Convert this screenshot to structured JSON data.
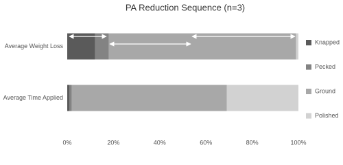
{
  "chart_data": {
    "type": "stacked-barh",
    "title": "PA Reduction Sequence (n=3)",
    "categories": [
      "Average Weight Loss",
      "Average Time Applied"
    ],
    "series": [
      {
        "name": "Knapped",
        "color": "#5a5a5a",
        "values": [
          12,
          1
        ]
      },
      {
        "name": "Pecked",
        "color": "#838383",
        "values": [
          6,
          1
        ]
      },
      {
        "name": "Ground",
        "color": "#a8a8a8",
        "values": [
          81,
          67
        ]
      },
      {
        "name": "Polished",
        "color": "#d2d2d2",
        "values": [
          1,
          31
        ]
      }
    ],
    "xlim": [
      0,
      100
    ],
    "xticks": [
      {
        "value": 0,
        "label": "0%"
      },
      {
        "value": 20,
        "label": "20%"
      },
      {
        "value": 40,
        "label": "40%"
      },
      {
        "value": 60,
        "label": "60%"
      },
      {
        "value": 80,
        "label": "80%"
      },
      {
        "value": 100,
        "label": "100%"
      }
    ],
    "legend": "right"
  }
}
